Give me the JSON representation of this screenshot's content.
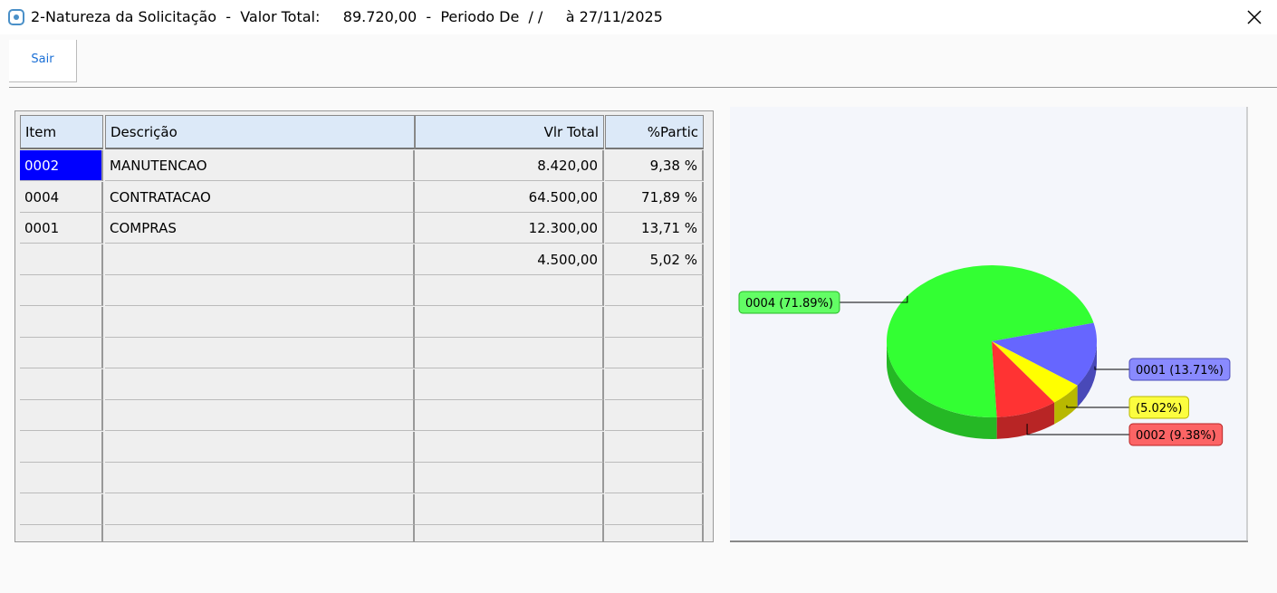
{
  "window": {
    "title": "2-Natureza da Solicitação  -  Valor Total:     89.720,00  -  Periodo De  / /     à 27/11/2025"
  },
  "toolbar": {
    "button": "Sair"
  },
  "table": {
    "headers": [
      "Item",
      "Descrição",
      "Vlr Total",
      "%Partic"
    ],
    "rows": [
      {
        "item": "0002",
        "descricao": "MANUTENCAO",
        "vlr_total": "8.420,00",
        "partic": "9,38 %"
      },
      {
        "item": "0004",
        "descricao": "CONTRATACAO",
        "vlr_total": "64.500,00",
        "partic": "71,89 %"
      },
      {
        "item": "0001",
        "descricao": "COMPRAS",
        "vlr_total": "12.300,00",
        "partic": "13,71 %"
      },
      {
        "vlr_total": "4.500,00",
        "partic": "5,02 %"
      }
    ]
  },
  "chart_data": {
    "type": "pie",
    "values": [
      71.89,
      13.71,
      5.02,
      9.38
    ],
    "value_labels": [
      "0004 (71.89%)",
      "0001 (13.71%)",
      "(5.02%)",
      "0002 (9.38%)"
    ],
    "colors": [
      "#33ff33",
      "#6666ff",
      "#ffff00",
      "#ff3333"
    ]
  }
}
